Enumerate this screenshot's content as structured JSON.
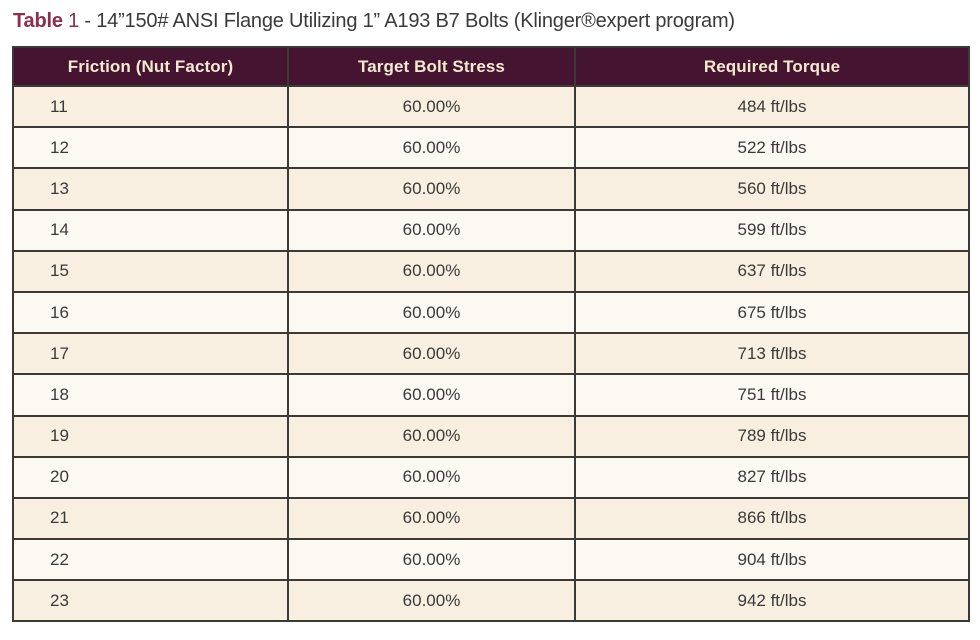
{
  "title": {
    "label": "Table",
    "number": "1",
    "separator": " - ",
    "text": "14”150# ANSI Flange Utilizing 1” A193 B7 Bolts (Klinger®expert program)"
  },
  "table": {
    "columns": [
      "Friction (Nut Factor)",
      "Target Bolt Stress",
      "Required Torque"
    ],
    "rows": [
      [
        "11",
        "60.00%",
        "484 ft/lbs"
      ],
      [
        "12",
        "60.00%",
        "522 ft/lbs"
      ],
      [
        "13",
        "60.00%",
        "560 ft/lbs"
      ],
      [
        "14",
        "60.00%",
        "599 ft/lbs"
      ],
      [
        "15",
        "60.00%",
        "637 ft/lbs"
      ],
      [
        "16",
        "60.00%",
        "675 ft/lbs"
      ],
      [
        "17",
        "60.00%",
        "713 ft/lbs"
      ],
      [
        "18",
        "60.00%",
        "751 ft/lbs"
      ],
      [
        "19",
        "60.00%",
        "789 ft/lbs"
      ],
      [
        "20",
        "60.00%",
        "827 ft/lbs"
      ],
      [
        "21",
        "60.00%",
        "866 ft/lbs"
      ],
      [
        "22",
        "60.00%",
        "904 ft/lbs"
      ],
      [
        "23",
        "60.00%",
        "942 ft/lbs"
      ]
    ]
  },
  "colors": {
    "header_bg": "#451431",
    "header_text": "#f2e9cf",
    "row_odd_bg": "#f8efe0",
    "row_even_bg": "#fcf9f2",
    "border": "#3c3a37",
    "title_accent": "#8c2e4f",
    "body_text": "#3a3a3a"
  }
}
